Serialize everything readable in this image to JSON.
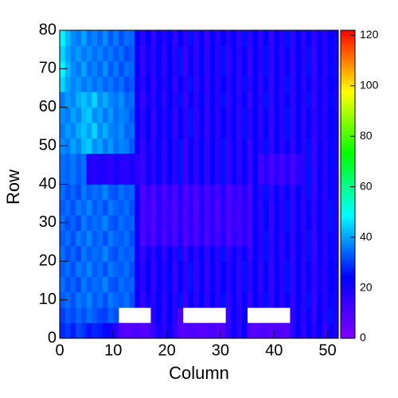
{
  "chart_data": {
    "type": "heatmap",
    "xlabel": "Column",
    "ylabel": "Row",
    "xlim": [
      0,
      52
    ],
    "ylim": [
      0,
      80
    ],
    "zlim": [
      0,
      122
    ],
    "xticks": [
      0,
      10,
      20,
      30,
      40,
      50
    ],
    "yticks": [
      0,
      10,
      20,
      30,
      40,
      50,
      60,
      70,
      80
    ],
    "zticks": [
      0,
      20,
      40,
      60,
      80,
      100,
      120
    ],
    "palette": [
      "#8000ff",
      "#0000ff",
      "#00ffff",
      "#00ff00",
      "#ffff00",
      "#ff0000"
    ],
    "xbins": [
      0,
      1,
      2,
      3,
      4,
      5,
      6,
      7,
      8,
      9,
      10,
      11,
      12,
      13,
      14,
      15,
      16,
      17,
      18,
      19,
      20,
      21,
      22,
      23,
      24,
      25,
      26,
      27,
      28,
      29,
      30,
      31,
      32,
      33,
      34,
      35,
      36,
      37,
      38,
      39,
      40,
      41,
      42,
      43,
      44,
      45,
      46,
      47,
      48,
      49,
      50,
      51,
      52
    ],
    "ybins": [
      0,
      4,
      8,
      12,
      16,
      20,
      24,
      28,
      32,
      36,
      40,
      44,
      48,
      52,
      56,
      60,
      64,
      68,
      72,
      76,
      80
    ],
    "z": [
      [
        28,
        30,
        27,
        31,
        29,
        26,
        28,
        27,
        25,
        22,
        18,
        10,
        8,
        9,
        10,
        8,
        9,
        14,
        20,
        16,
        22,
        15,
        9,
        8,
        10,
        9,
        8,
        9,
        10,
        8,
        9,
        15,
        22,
        16,
        24,
        9,
        8,
        10,
        9,
        8,
        10,
        9,
        8,
        16,
        23,
        15,
        24,
        17,
        25,
        14,
        22,
        19
      ],
      [
        30,
        33,
        31,
        34,
        32,
        35,
        33,
        31,
        30,
        34,
        32,
        null,
        null,
        null,
        null,
        null,
        null,
        16,
        25,
        15,
        24,
        17,
        10,
        null,
        null,
        null,
        null,
        null,
        null,
        null,
        null,
        14,
        23,
        16,
        25,
        null,
        null,
        null,
        null,
        null,
        null,
        null,
        null,
        15,
        23,
        16,
        25,
        14,
        24,
        17,
        26,
        20
      ],
      [
        33,
        35,
        32,
        36,
        34,
        37,
        33,
        35,
        32,
        36,
        34,
        33,
        35,
        32,
        22,
        14,
        22,
        16,
        25,
        15,
        24,
        17,
        26,
        14,
        23,
        16,
        25,
        15,
        24,
        17,
        26,
        15,
        23,
        16,
        25,
        14,
        24,
        17,
        26,
        15,
        23,
        16,
        25,
        15,
        24,
        17,
        26,
        14,
        23,
        16,
        25,
        20
      ],
      [
        35,
        32,
        34,
        31,
        36,
        33,
        35,
        34,
        37,
        33,
        32,
        35,
        33,
        34,
        21,
        16,
        24,
        15,
        23,
        17,
        25,
        14,
        24,
        16,
        26,
        15,
        23,
        14,
        25,
        16,
        24,
        17,
        23,
        15,
        26,
        16,
        24,
        15,
        25,
        14,
        23,
        17,
        26,
        15,
        24,
        16,
        25,
        15,
        22,
        17,
        24,
        21
      ],
      [
        33,
        35,
        32,
        36,
        34,
        37,
        33,
        35,
        32,
        36,
        34,
        33,
        35,
        32,
        22,
        16,
        24,
        15,
        23,
        17,
        25,
        14,
        24,
        16,
        26,
        15,
        23,
        14,
        25,
        16,
        24,
        17,
        23,
        15,
        26,
        16,
        24,
        15,
        25,
        14,
        23,
        17,
        26,
        15,
        24,
        16,
        25,
        15,
        22,
        17,
        24,
        21
      ],
      [
        35,
        32,
        34,
        31,
        36,
        33,
        35,
        34,
        37,
        33,
        32,
        35,
        33,
        34,
        21,
        14,
        22,
        16,
        25,
        15,
        24,
        17,
        26,
        14,
        23,
        16,
        25,
        15,
        24,
        17,
        26,
        15,
        23,
        16,
        25,
        14,
        24,
        17,
        26,
        15,
        23,
        16,
        25,
        15,
        24,
        17,
        26,
        14,
        23,
        16,
        25,
        20
      ],
      [
        33,
        35,
        32,
        36,
        34,
        37,
        33,
        35,
        32,
        36,
        34,
        33,
        35,
        32,
        22,
        9,
        15,
        10,
        17,
        9,
        16,
        10,
        18,
        9,
        15,
        10,
        17,
        10,
        16,
        11,
        18,
        9,
        15,
        12,
        16,
        11,
        24,
        17,
        26,
        15,
        23,
        16,
        25,
        15,
        24,
        17,
        26,
        14,
        23,
        16,
        25,
        20
      ],
      [
        35,
        32,
        34,
        31,
        36,
        33,
        35,
        34,
        37,
        33,
        32,
        35,
        33,
        34,
        21,
        10,
        14,
        9,
        16,
        11,
        15,
        9,
        17,
        10,
        16,
        9,
        18,
        11,
        15,
        10,
        17,
        10,
        14,
        11,
        17,
        12,
        23,
        16,
        25,
        14,
        24,
        17,
        26,
        15,
        23,
        16,
        25,
        15,
        24,
        17,
        26,
        19
      ],
      [
        33,
        35,
        32,
        36,
        34,
        37,
        33,
        35,
        32,
        36,
        34,
        33,
        35,
        32,
        22,
        10,
        14,
        9,
        16,
        11,
        15,
        9,
        17,
        10,
        16,
        9,
        18,
        11,
        15,
        10,
        17,
        10,
        14,
        11,
        17,
        12,
        23,
        16,
        25,
        14,
        24,
        17,
        26,
        15,
        23,
        16,
        25,
        15,
        24,
        17,
        26,
        19
      ],
      [
        35,
        32,
        34,
        31,
        36,
        33,
        35,
        34,
        37,
        33,
        32,
        35,
        33,
        34,
        21,
        9,
        15,
        10,
        17,
        9,
        16,
        10,
        18,
        9,
        15,
        10,
        17,
        10,
        16,
        11,
        18,
        9,
        15,
        12,
        16,
        11,
        24,
        17,
        26,
        15,
        23,
        16,
        25,
        15,
        24,
        17,
        26,
        14,
        23,
        16,
        25,
        20
      ],
      [
        35,
        34,
        36,
        33,
        35,
        18,
        17,
        19,
        18,
        17,
        19,
        18,
        17,
        20,
        16,
        14,
        22,
        16,
        25,
        15,
        24,
        17,
        26,
        14,
        23,
        16,
        25,
        15,
        24,
        17,
        26,
        15,
        23,
        16,
        25,
        14,
        24,
        12,
        17,
        11,
        16,
        12,
        17,
        11,
        16,
        17,
        26,
        14,
        23,
        16,
        25,
        20
      ],
      [
        35,
        34,
        36,
        33,
        35,
        18,
        17,
        19,
        18,
        17,
        19,
        18,
        17,
        20,
        16,
        14,
        22,
        16,
        25,
        15,
        24,
        17,
        26,
        14,
        23,
        16,
        25,
        15,
        24,
        17,
        26,
        15,
        23,
        16,
        25,
        14,
        24,
        12,
        17,
        11,
        16,
        12,
        17,
        11,
        16,
        17,
        26,
        14,
        23,
        16,
        25,
        20
      ],
      [
        38,
        36,
        40,
        37,
        42,
        44,
        38,
        40,
        36,
        39,
        35,
        37,
        36,
        33,
        22,
        14,
        22,
        16,
        25,
        15,
        24,
        17,
        26,
        14,
        23,
        16,
        25,
        15,
        24,
        17,
        26,
        15,
        23,
        16,
        25,
        14,
        24,
        17,
        26,
        15,
        23,
        16,
        25,
        15,
        24,
        17,
        26,
        14,
        23,
        16,
        25,
        20
      ],
      [
        36,
        39,
        37,
        41,
        43,
        40,
        45,
        38,
        41,
        37,
        36,
        38,
        34,
        35,
        21,
        16,
        24,
        15,
        23,
        17,
        25,
        14,
        24,
        16,
        26,
        15,
        23,
        14,
        25,
        16,
        24,
        17,
        23,
        15,
        26,
        16,
        24,
        15,
        25,
        14,
        23,
        17,
        26,
        15,
        24,
        16,
        25,
        15,
        22,
        17,
        24,
        21
      ],
      [
        38,
        36,
        40,
        37,
        42,
        44,
        38,
        40,
        36,
        39,
        35,
        37,
        36,
        33,
        22,
        16,
        24,
        15,
        23,
        17,
        25,
        14,
        24,
        16,
        26,
        15,
        23,
        14,
        25,
        16,
        24,
        17,
        23,
        15,
        26,
        16,
        24,
        15,
        25,
        14,
        23,
        17,
        26,
        15,
        24,
        16,
        25,
        15,
        22,
        17,
        24,
        21
      ],
      [
        36,
        39,
        37,
        41,
        43,
        40,
        45,
        38,
        41,
        37,
        36,
        38,
        34,
        35,
        21,
        14,
        22,
        16,
        25,
        15,
        24,
        17,
        26,
        14,
        23,
        16,
        25,
        15,
        24,
        17,
        26,
        15,
        23,
        16,
        25,
        14,
        24,
        17,
        26,
        15,
        23,
        16,
        25,
        15,
        24,
        17,
        26,
        14,
        23,
        16,
        25,
        20
      ],
      [
        45,
        40,
        37,
        39,
        36,
        38,
        35,
        37,
        34,
        36,
        33,
        35,
        31,
        33,
        22,
        16,
        24,
        15,
        23,
        17,
        25,
        14,
        24,
        16,
        26,
        15,
        23,
        14,
        25,
        16,
        24,
        17,
        23,
        15,
        26,
        16,
        24,
        15,
        25,
        14,
        23,
        17,
        26,
        15,
        24,
        16,
        25,
        15,
        22,
        17,
        24,
        21
      ],
      [
        48,
        42,
        38,
        36,
        40,
        35,
        37,
        34,
        38,
        33,
        36,
        32,
        35,
        34,
        24,
        14,
        22,
        16,
        25,
        15,
        24,
        17,
        26,
        14,
        23,
        16,
        25,
        15,
        24,
        17,
        26,
        15,
        23,
        16,
        25,
        14,
        24,
        17,
        26,
        15,
        23,
        16,
        25,
        15,
        24,
        17,
        26,
        14,
        23,
        16,
        25,
        20
      ],
      [
        45,
        40,
        37,
        39,
        36,
        38,
        35,
        37,
        34,
        36,
        33,
        35,
        31,
        33,
        22,
        14,
        22,
        16,
        25,
        15,
        24,
        17,
        26,
        14,
        23,
        16,
        25,
        15,
        24,
        17,
        26,
        15,
        23,
        16,
        25,
        14,
        24,
        17,
        26,
        15,
        23,
        16,
        25,
        15,
        24,
        17,
        26,
        14,
        23,
        16,
        25,
        20
      ],
      [
        48,
        42,
        38,
        36,
        40,
        35,
        37,
        34,
        38,
        33,
        36,
        32,
        35,
        34,
        24,
        16,
        24,
        15,
        23,
        17,
        25,
        14,
        24,
        16,
        26,
        15,
        23,
        14,
        25,
        16,
        24,
        17,
        23,
        15,
        26,
        16,
        24,
        15,
        25,
        14,
        23,
        17,
        26,
        15,
        24,
        16,
        25,
        15,
        22,
        17,
        24,
        21
      ]
    ]
  }
}
